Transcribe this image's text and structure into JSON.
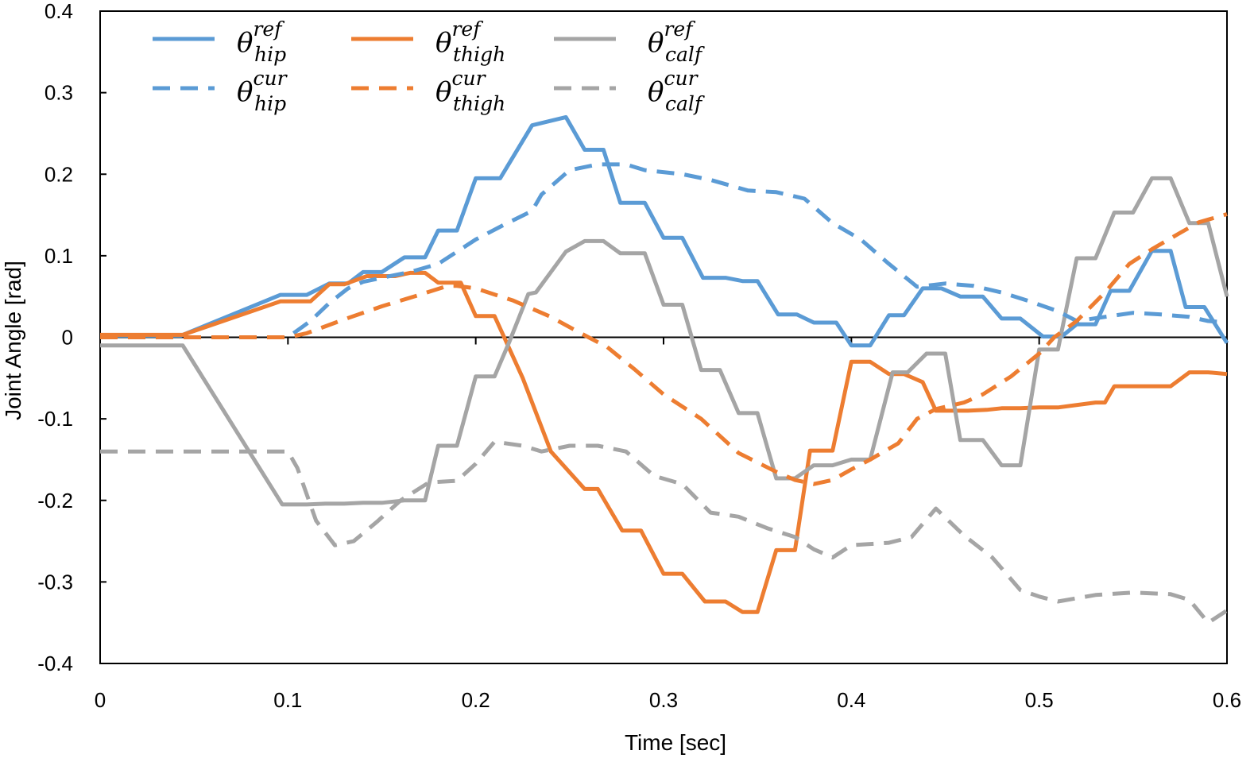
{
  "chart_data": {
    "type": "line",
    "title": "",
    "xlabel": "Time [sec]",
    "ylabel": "Joint Angle [rad]",
    "xlim": [
      0,
      0.6
    ],
    "ylim": [
      -0.4,
      0.4
    ],
    "xticks": [
      0,
      0.1,
      0.2,
      0.3,
      0.4,
      0.5,
      0.6
    ],
    "xtick_labels": [
      "0",
      "0.1",
      "0.2",
      "0.3",
      "0.4",
      "0.5",
      "0.6"
    ],
    "yticks": [
      -0.4,
      -0.3,
      -0.2,
      -0.1,
      0,
      0.1,
      0.2,
      0.3,
      0.4
    ],
    "ytick_labels": [
      "-0.4",
      "-0.3",
      "-0.2",
      "-0.1",
      "0",
      "0.1",
      "0.2",
      "0.3",
      "0.4"
    ],
    "grid": false,
    "legend_position": "top-left",
    "series": [
      {
        "name": "θ_hip^ref",
        "symbol": "θ",
        "sub": "hip",
        "sup": "ref",
        "color": "#5B9BD5",
        "dash": false,
        "points": [
          [
            0,
            0.002
          ],
          [
            0.043,
            0.002
          ],
          [
            0.096,
            0.052
          ],
          [
            0.11,
            0.052
          ],
          [
            0.122,
            0.066
          ],
          [
            0.132,
            0.066
          ],
          [
            0.14,
            0.08
          ],
          [
            0.15,
            0.08
          ],
          [
            0.162,
            0.098
          ],
          [
            0.173,
            0.098
          ],
          [
            0.18,
            0.131
          ],
          [
            0.19,
            0.131
          ],
          [
            0.2,
            0.195
          ],
          [
            0.213,
            0.195
          ],
          [
            0.23,
            0.26
          ],
          [
            0.248,
            0.27
          ],
          [
            0.258,
            0.23
          ],
          [
            0.268,
            0.23
          ],
          [
            0.277,
            0.165
          ],
          [
            0.29,
            0.165
          ],
          [
            0.3,
            0.122
          ],
          [
            0.31,
            0.122
          ],
          [
            0.321,
            0.073
          ],
          [
            0.333,
            0.073
          ],
          [
            0.342,
            0.069
          ],
          [
            0.35,
            0.069
          ],
          [
            0.361,
            0.028
          ],
          [
            0.371,
            0.028
          ],
          [
            0.38,
            0.018
          ],
          [
            0.392,
            0.018
          ],
          [
            0.4,
            -0.01
          ],
          [
            0.41,
            -0.01
          ],
          [
            0.42,
            0.027
          ],
          [
            0.428,
            0.027
          ],
          [
            0.438,
            0.06
          ],
          [
            0.448,
            0.06
          ],
          [
            0.458,
            0.05
          ],
          [
            0.47,
            0.05
          ],
          [
            0.48,
            0.023
          ],
          [
            0.49,
            0.023
          ],
          [
            0.502,
            0.001
          ],
          [
            0.512,
            0.001
          ],
          [
            0.52,
            0.016
          ],
          [
            0.53,
            0.016
          ],
          [
            0.538,
            0.057
          ],
          [
            0.548,
            0.057
          ],
          [
            0.56,
            0.106
          ],
          [
            0.57,
            0.106
          ],
          [
            0.578,
            0.037
          ],
          [
            0.588,
            0.037
          ],
          [
            0.6,
            -0.007
          ]
        ]
      },
      {
        "name": "θ_thigh^ref",
        "symbol": "θ",
        "sub": "thigh",
        "sup": "ref",
        "color": "#ED7D31",
        "dash": false,
        "points": [
          [
            0,
            0.003
          ],
          [
            0.044,
            0.003
          ],
          [
            0.096,
            0.044
          ],
          [
            0.112,
            0.044
          ],
          [
            0.122,
            0.065
          ],
          [
            0.13,
            0.065
          ],
          [
            0.142,
            0.075
          ],
          [
            0.157,
            0.075
          ],
          [
            0.165,
            0.079
          ],
          [
            0.173,
            0.079
          ],
          [
            0.18,
            0.067
          ],
          [
            0.192,
            0.067
          ],
          [
            0.2,
            0.026
          ],
          [
            0.21,
            0.026
          ],
          [
            0.225,
            -0.05
          ],
          [
            0.24,
            -0.14
          ],
          [
            0.258,
            -0.186
          ],
          [
            0.265,
            -0.186
          ],
          [
            0.278,
            -0.237
          ],
          [
            0.288,
            -0.237
          ],
          [
            0.3,
            -0.29
          ],
          [
            0.31,
            -0.29
          ],
          [
            0.322,
            -0.324
          ],
          [
            0.333,
            -0.324
          ],
          [
            0.342,
            -0.337
          ],
          [
            0.35,
            -0.337
          ],
          [
            0.36,
            -0.261
          ],
          [
            0.37,
            -0.261
          ],
          [
            0.378,
            -0.139
          ],
          [
            0.39,
            -0.139
          ],
          [
            0.4,
            -0.03
          ],
          [
            0.41,
            -0.03
          ],
          [
            0.42,
            -0.045
          ],
          [
            0.428,
            -0.045
          ],
          [
            0.438,
            -0.055
          ],
          [
            0.445,
            -0.09
          ],
          [
            0.462,
            -0.09
          ],
          [
            0.472,
            -0.089
          ],
          [
            0.48,
            -0.087
          ],
          [
            0.49,
            -0.087
          ],
          [
            0.5,
            -0.086
          ],
          [
            0.51,
            -0.086
          ],
          [
            0.53,
            -0.08
          ],
          [
            0.535,
            -0.08
          ],
          [
            0.54,
            -0.06
          ],
          [
            0.57,
            -0.06
          ],
          [
            0.58,
            -0.043
          ],
          [
            0.59,
            -0.043
          ],
          [
            0.6,
            -0.045
          ]
        ]
      },
      {
        "name": "θ_calf^ref",
        "symbol": "θ",
        "sub": "calf",
        "sup": "ref",
        "color": "#A5A5A5",
        "dash": false,
        "points": [
          [
            0,
            -0.01
          ],
          [
            0.044,
            -0.01
          ],
          [
            0.097,
            -0.205
          ],
          [
            0.11,
            -0.205
          ],
          [
            0.12,
            -0.204
          ],
          [
            0.13,
            -0.204
          ],
          [
            0.14,
            -0.203
          ],
          [
            0.15,
            -0.203
          ],
          [
            0.162,
            -0.2
          ],
          [
            0.173,
            -0.2
          ],
          [
            0.18,
            -0.133
          ],
          [
            0.19,
            -0.133
          ],
          [
            0.2,
            -0.048
          ],
          [
            0.21,
            -0.048
          ],
          [
            0.218,
            -0.005
          ],
          [
            0.228,
            0.053
          ],
          [
            0.232,
            0.055
          ],
          [
            0.248,
            0.105
          ],
          [
            0.258,
            0.118
          ],
          [
            0.268,
            0.118
          ],
          [
            0.277,
            0.103
          ],
          [
            0.29,
            0.103
          ],
          [
            0.3,
            0.04
          ],
          [
            0.31,
            0.04
          ],
          [
            0.32,
            -0.04
          ],
          [
            0.33,
            -0.04
          ],
          [
            0.34,
            -0.093
          ],
          [
            0.35,
            -0.093
          ],
          [
            0.36,
            -0.173
          ],
          [
            0.37,
            -0.173
          ],
          [
            0.38,
            -0.157
          ],
          [
            0.39,
            -0.157
          ],
          [
            0.4,
            -0.15
          ],
          [
            0.41,
            -0.15
          ],
          [
            0.422,
            -0.043
          ],
          [
            0.43,
            -0.043
          ],
          [
            0.44,
            -0.02
          ],
          [
            0.45,
            -0.02
          ],
          [
            0.458,
            -0.126
          ],
          [
            0.47,
            -0.126
          ],
          [
            0.48,
            -0.157
          ],
          [
            0.49,
            -0.157
          ],
          [
            0.5,
            -0.015
          ],
          [
            0.51,
            -0.015
          ],
          [
            0.52,
            0.097
          ],
          [
            0.53,
            0.097
          ],
          [
            0.54,
            0.153
          ],
          [
            0.55,
            0.153
          ],
          [
            0.56,
            0.195
          ],
          [
            0.57,
            0.195
          ],
          [
            0.58,
            0.14
          ],
          [
            0.59,
            0.14
          ],
          [
            0.6,
            0.05
          ]
        ]
      },
      {
        "name": "θ_hip^cur",
        "symbol": "θ",
        "sub": "hip",
        "sup": "cur",
        "color": "#5B9BD5",
        "dash": true,
        "points": [
          [
            0,
            0.0
          ],
          [
            0.1,
            0.0
          ],
          [
            0.112,
            0.02
          ],
          [
            0.122,
            0.042
          ],
          [
            0.132,
            0.06
          ],
          [
            0.14,
            0.068
          ],
          [
            0.152,
            0.074
          ],
          [
            0.165,
            0.08
          ],
          [
            0.18,
            0.09
          ],
          [
            0.2,
            0.12
          ],
          [
            0.215,
            0.138
          ],
          [
            0.23,
            0.155
          ],
          [
            0.235,
            0.175
          ],
          [
            0.25,
            0.205
          ],
          [
            0.265,
            0.212
          ],
          [
            0.28,
            0.212
          ],
          [
            0.29,
            0.205
          ],
          [
            0.31,
            0.2
          ],
          [
            0.325,
            0.193
          ],
          [
            0.345,
            0.18
          ],
          [
            0.36,
            0.178
          ],
          [
            0.375,
            0.17
          ],
          [
            0.39,
            0.14
          ],
          [
            0.405,
            0.12
          ],
          [
            0.42,
            0.09
          ],
          [
            0.435,
            0.062
          ],
          [
            0.45,
            0.066
          ],
          [
            0.465,
            0.063
          ],
          [
            0.48,
            0.055
          ],
          [
            0.495,
            0.044
          ],
          [
            0.51,
            0.032
          ],
          [
            0.52,
            0.02
          ],
          [
            0.535,
            0.025
          ],
          [
            0.55,
            0.03
          ],
          [
            0.565,
            0.028
          ],
          [
            0.58,
            0.025
          ],
          [
            0.59,
            0.02
          ],
          [
            0.6,
            0.018
          ]
        ]
      },
      {
        "name": "θ_thigh^cur",
        "symbol": "θ",
        "sub": "thigh",
        "sup": "cur",
        "color": "#ED7D31",
        "dash": true,
        "points": [
          [
            0,
            0.0
          ],
          [
            0.1,
            0.0
          ],
          [
            0.11,
            0.005
          ],
          [
            0.13,
            0.022
          ],
          [
            0.15,
            0.038
          ],
          [
            0.17,
            0.052
          ],
          [
            0.185,
            0.063
          ],
          [
            0.19,
            0.063
          ],
          [
            0.2,
            0.06
          ],
          [
            0.22,
            0.045
          ],
          [
            0.24,
            0.025
          ],
          [
            0.255,
            0.006
          ],
          [
            0.27,
            -0.012
          ],
          [
            0.285,
            -0.04
          ],
          [
            0.3,
            -0.07
          ],
          [
            0.32,
            -0.1
          ],
          [
            0.34,
            -0.142
          ],
          [
            0.36,
            -0.165
          ],
          [
            0.37,
            -0.175
          ],
          [
            0.38,
            -0.18
          ],
          [
            0.39,
            -0.175
          ],
          [
            0.4,
            -0.162
          ],
          [
            0.41,
            -0.15
          ],
          [
            0.425,
            -0.13
          ],
          [
            0.435,
            -0.1
          ],
          [
            0.445,
            -0.088
          ],
          [
            0.46,
            -0.08
          ],
          [
            0.47,
            -0.07
          ],
          [
            0.485,
            -0.048
          ],
          [
            0.5,
            -0.02
          ],
          [
            0.508,
            0.0
          ],
          [
            0.52,
            0.02
          ],
          [
            0.535,
            0.055
          ],
          [
            0.548,
            0.09
          ],
          [
            0.56,
            0.108
          ],
          [
            0.575,
            0.128
          ],
          [
            0.585,
            0.141
          ],
          [
            0.6,
            0.151
          ]
        ]
      },
      {
        "name": "θ_calf^cur",
        "symbol": "θ",
        "sub": "calf",
        "sup": "cur",
        "color": "#A5A5A5",
        "dash": true,
        "points": [
          [
            0,
            -0.14
          ],
          [
            0.1,
            -0.14
          ],
          [
            0.105,
            -0.16
          ],
          [
            0.115,
            -0.225
          ],
          [
            0.125,
            -0.255
          ],
          [
            0.135,
            -0.25
          ],
          [
            0.148,
            -0.225
          ],
          [
            0.16,
            -0.2
          ],
          [
            0.175,
            -0.178
          ],
          [
            0.19,
            -0.176
          ],
          [
            0.2,
            -0.155
          ],
          [
            0.21,
            -0.128
          ],
          [
            0.225,
            -0.133
          ],
          [
            0.235,
            -0.14
          ],
          [
            0.25,
            -0.133
          ],
          [
            0.265,
            -0.133
          ],
          [
            0.28,
            -0.14
          ],
          [
            0.295,
            -0.17
          ],
          [
            0.31,
            -0.18
          ],
          [
            0.325,
            -0.215
          ],
          [
            0.34,
            -0.22
          ],
          [
            0.355,
            -0.234
          ],
          [
            0.37,
            -0.245
          ],
          [
            0.38,
            -0.26
          ],
          [
            0.39,
            -0.27
          ],
          [
            0.4,
            -0.255
          ],
          [
            0.42,
            -0.252
          ],
          [
            0.432,
            -0.245
          ],
          [
            0.445,
            -0.21
          ],
          [
            0.46,
            -0.243
          ],
          [
            0.475,
            -0.27
          ],
          [
            0.49,
            -0.31
          ],
          [
            0.5,
            -0.318
          ],
          [
            0.51,
            -0.324
          ],
          [
            0.53,
            -0.316
          ],
          [
            0.55,
            -0.313
          ],
          [
            0.57,
            -0.315
          ],
          [
            0.58,
            -0.322
          ],
          [
            0.59,
            -0.35
          ],
          [
            0.6,
            -0.335
          ]
        ]
      }
    ]
  }
}
